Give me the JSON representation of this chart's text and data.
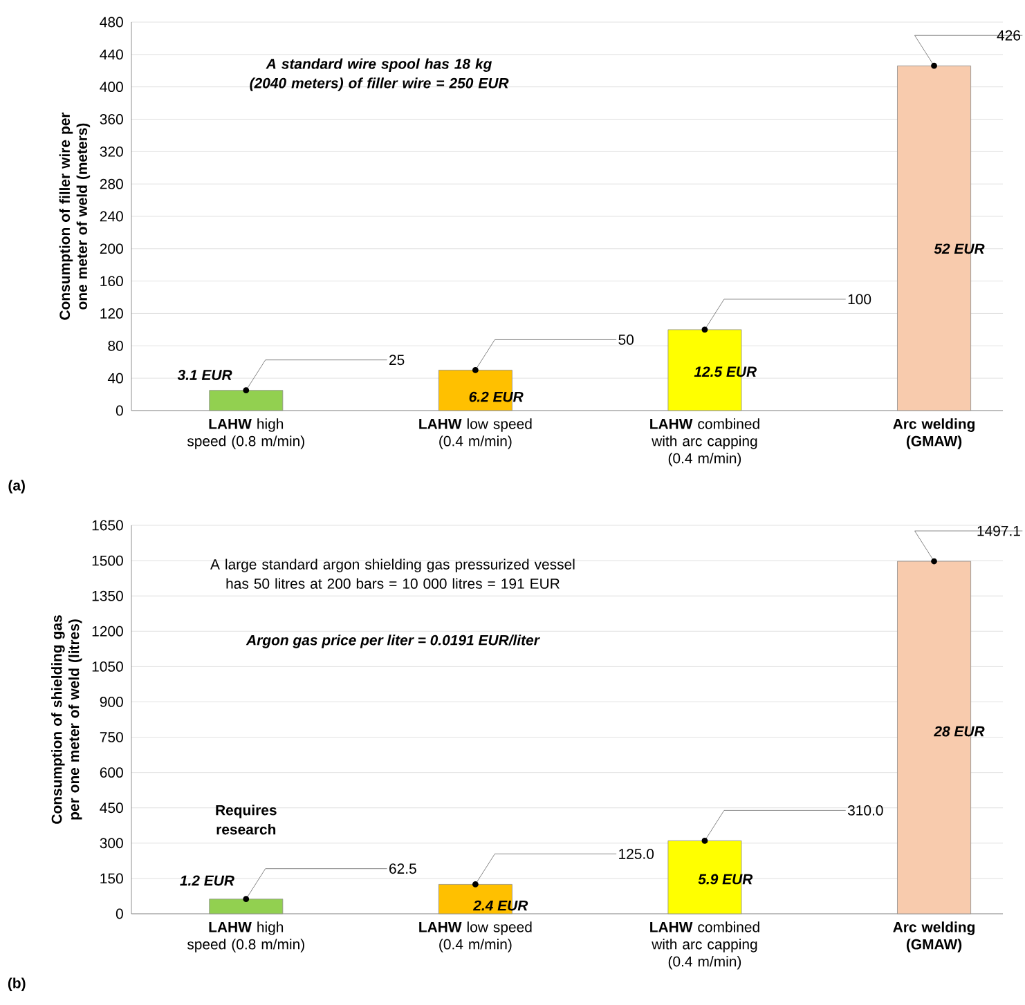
{
  "chart_data": [
    {
      "type": "bar",
      "ylabel": "Consumption of filler wire per one meter of weld (meters)",
      "categories": [
        "**LAHW** high speed (0.8 m/min)",
        "**LAHW** low speed (0.4 m/min)",
        "**LAHW** combined with arc capping (0.4 m/min)",
        "Arc welding (GMAW)"
      ],
      "values": [
        25,
        50,
        100,
        426
      ],
      "value_labels": [
        "25",
        "50",
        "100",
        "426"
      ],
      "colors": [
        "#92d050",
        "#ffc000",
        "#ffff00",
        "#f8cbad"
      ],
      "ylim": [
        0,
        480
      ],
      "yticks": [
        0,
        40,
        80,
        120,
        160,
        200,
        240,
        280,
        320,
        360,
        400,
        440,
        480
      ],
      "grid": "y",
      "annotations": [
        "A standard wire spool has 18 kg (2040 meters) of filler wire = 250 EUR",
        "3.1 EUR",
        "6.2 EUR",
        "12.5 EUR",
        "52 EUR",
        "(a)"
      ]
    },
    {
      "type": "bar",
      "ylabel": "Consumption of shielding gas per one meter of weld (litres)",
      "categories": [
        "**LAHW** high speed (0.8 m/min)",
        "**LAHW** low speed (0.4 m/min)",
        "**LAHW** combined with arc capping (0.4 m/min)",
        "Arc welding (GMAW)"
      ],
      "values": [
        62.5,
        125.0,
        310.0,
        1497.1
      ],
      "value_labels": [
        "62.5",
        "125.0",
        "310.0",
        "1497.1"
      ],
      "colors": [
        "#92d050",
        "#ffc000",
        "#ffff00",
        "#f8cbad"
      ],
      "ylim": [
        0,
        1650
      ],
      "yticks": [
        0,
        150,
        300,
        450,
        600,
        750,
        900,
        1050,
        1200,
        1350,
        1500,
        1650
      ],
      "grid": "y",
      "annotations": [
        "A large standard argon shielding gas pressurized vessel has 50 litres at 200 bars = 10 000 litres  = 191 EUR",
        "Argon gas price per liter = 0.0191 EUR/liter",
        "Requires research",
        "1.2 EUR",
        "2.4 EUR",
        "5.9 EUR",
        "28 EUR",
        "(b)"
      ]
    }
  ]
}
